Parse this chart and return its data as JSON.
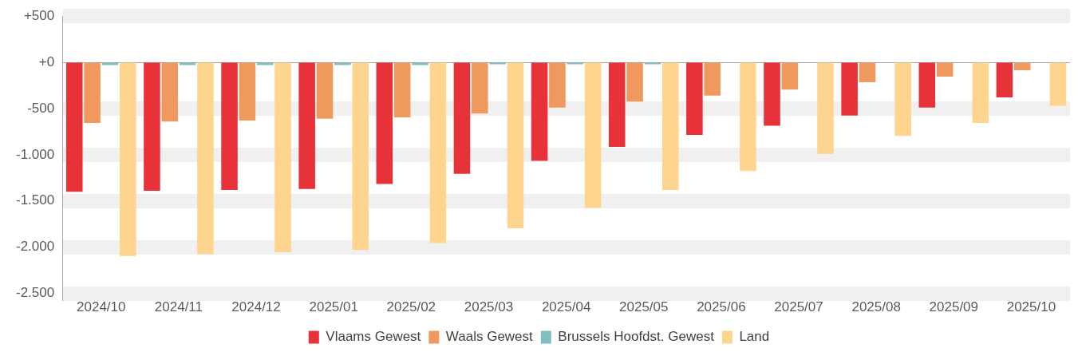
{
  "chart_data": {
    "type": "bar",
    "categories": [
      "2024/10",
      "2024/11",
      "2024/12",
      "2025/01",
      "2025/02",
      "2025/03",
      "2025/04",
      "2025/05",
      "2025/06",
      "2025/07",
      "2025/08",
      "2025/09",
      "2025/10"
    ],
    "series": [
      {
        "name": "Vlaams Gewest",
        "color": "#e8323a",
        "values": [
          -1400,
          -1390,
          -1380,
          -1370,
          -1315,
          -1205,
          -1065,
          -915,
          -785,
          -685,
          -575,
          -490,
          -380
        ]
      },
      {
        "name": "Waals Gewest",
        "color": "#f0995e",
        "values": [
          -655,
          -640,
          -630,
          -610,
          -595,
          -555,
          -490,
          -425,
          -360,
          -295,
          -215,
          -155,
          -85
        ]
      },
      {
        "name": "Brussels Hoofdst. Gewest",
        "color": "#7fbfbf",
        "values": [
          -30,
          -30,
          -30,
          -30,
          -30,
          -20,
          -20,
          -20,
          null,
          null,
          null,
          null,
          null
        ]
      },
      {
        "name": "Land",
        "color": "#fdd58e",
        "values": [
          -2095,
          -2075,
          -2055,
          -2030,
          -1955,
          -1795,
          -1575,
          -1380,
          -1175,
          -990,
          -795,
          -655,
          -470
        ]
      }
    ],
    "ylim": [
      -2500,
      500
    ],
    "yticks": [
      {
        "value": 500,
        "label": "+500"
      },
      {
        "value": 0,
        "label": "+0"
      },
      {
        "value": -500,
        "label": "-500"
      },
      {
        "value": -1000,
        "label": "-1.000"
      },
      {
        "value": -1500,
        "label": "-1.500"
      },
      {
        "value": -2000,
        "label": "-2.000"
      },
      {
        "value": -2500,
        "label": "-2.500"
      }
    ],
    "grid": "y",
    "legend": "bottom"
  }
}
